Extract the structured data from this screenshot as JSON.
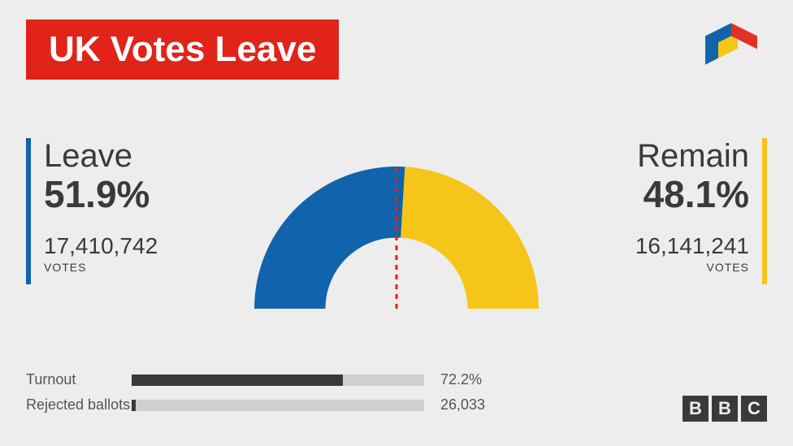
{
  "title": "UK Votes Leave",
  "title_bg": "#e1231a",
  "title_color": "#ffffff",
  "background": "#ededed",
  "text_color": "#3a3a3a",
  "logo_colors": {
    "red": "#e03127",
    "blue": "#1163ac",
    "yellow": "#f6c51a"
  },
  "gauge": {
    "type": "semicircle",
    "left_pct": 51.9,
    "right_pct": 48.1,
    "left_color": "#1163ac",
    "right_color": "#f6c51a",
    "divider_color": "#e1231a",
    "inner_radius_ratio": 0.5
  },
  "left": {
    "label": "Leave",
    "percent": "51.9%",
    "votes": "17,410,742",
    "votes_label": "VOTES",
    "accent": "#1163ac"
  },
  "right": {
    "label": "Remain",
    "percent": "48.1%",
    "votes": "16,141,241",
    "votes_label": "VOTES",
    "accent": "#f6c51a"
  },
  "turnout": {
    "label": "Turnout",
    "value": "72.2%",
    "fill_pct": 72.2,
    "track": "#cfcfcf",
    "fill": "#3a3a3a"
  },
  "rejected": {
    "label": "Rejected ballots",
    "value": "26,033",
    "fill_pct": 1.5,
    "track": "#cfcfcf",
    "fill": "#3a3a3a"
  },
  "footer_logo": [
    "B",
    "B",
    "C"
  ]
}
